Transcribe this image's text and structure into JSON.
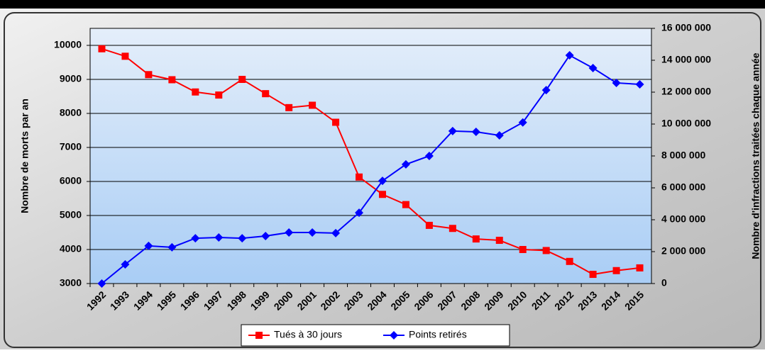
{
  "chart_data": {
    "type": "line",
    "categories": [
      "1992",
      "1993",
      "1994",
      "1995",
      "1996",
      "1997",
      "1998",
      "1999",
      "2000",
      "2001",
      "2002",
      "2003",
      "2004",
      "2005",
      "2006",
      "2007",
      "2008",
      "2009",
      "2010",
      "2011",
      "2012",
      "2013",
      "2014",
      "2015"
    ],
    "series": [
      {
        "name": "Tués à 30 jours",
        "color": "#ff0000",
        "marker": "square",
        "values": [
          9900,
          9680,
          9140,
          8990,
          8630,
          8540,
          9000,
          8580,
          8170,
          8240,
          7740,
          6130,
          5620,
          5320,
          4710,
          4620,
          4310,
          4270,
          4000,
          3970,
          3650,
          3270,
          3380,
          3460
        ]
      },
      {
        "name": "Points retirés",
        "color": "#0000ff",
        "marker": "diamond",
        "axis": "y2",
        "values": [
          0,
          1200000,
          2360000,
          2270000,
          2840000,
          2890000,
          2840000,
          2980000,
          3200000,
          3200000,
          3160000,
          4440000,
          6440000,
          7470000,
          8000000,
          9560000,
          9510000,
          9290000,
          10100000,
          12130000,
          14310000,
          13510000,
          12580000,
          12490000
        ]
      }
    ],
    "ylabel": "Nombre de morts par an",
    "y2label": "Nombre d'infractions traitées chaque année",
    "ylim": [
      3000,
      10500
    ],
    "yticks": [
      3000,
      4000,
      5000,
      6000,
      7000,
      8000,
      9000,
      10000
    ],
    "y2lim": [
      0,
      16000000
    ],
    "y2ticks": [
      0,
      {
        "value": 2000000,
        "label": "2 000 000"
      },
      {
        "value": 4000000,
        "label": "4 000 000"
      },
      {
        "value": 6000000,
        "label": "6 000 000"
      },
      {
        "value": 8000000,
        "label": "8 000 000"
      },
      {
        "value": 10000000,
        "label": "10 000 000"
      },
      {
        "value": 12000000,
        "label": "12 000 000"
      },
      {
        "value": 14000000,
        "label": "14 000 000"
      },
      {
        "value": 16000000,
        "label": "16 000 000"
      }
    ],
    "grid": true,
    "legend": "bottom"
  }
}
